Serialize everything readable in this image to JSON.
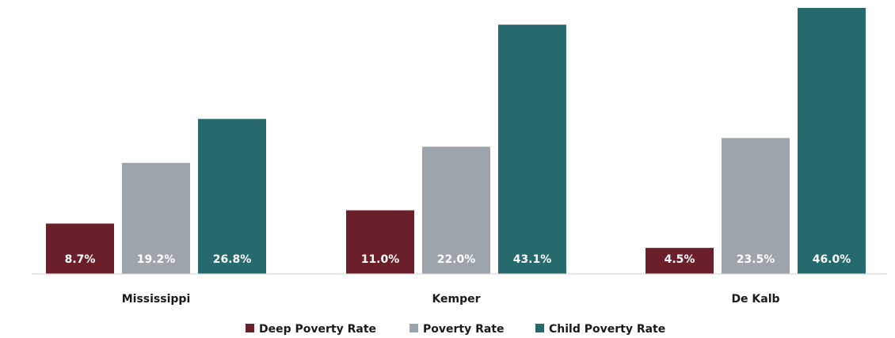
{
  "chart_data": {
    "type": "bar",
    "categories": [
      "Mississippi",
      "Kemper",
      "De Kalb"
    ],
    "series": [
      {
        "name": "Deep Poverty Rate",
        "color": "#6b1f2b",
        "values": [
          8.7,
          11.0,
          4.5
        ],
        "labels": [
          "8.7%",
          "11.0%",
          "4.5%"
        ]
      },
      {
        "name": "Poverty Rate",
        "color": "#9da4ac",
        "values": [
          19.2,
          22.0,
          23.5
        ],
        "labels": [
          "19.2%",
          "22.0%",
          "23.5%"
        ]
      },
      {
        "name": "Child Poverty Rate",
        "color": "#276a6e",
        "values": [
          26.8,
          43.1,
          46.0
        ],
        "labels": [
          "26.8%",
          "43.1%",
          "46.0%"
        ]
      }
    ],
    "ylim": [
      0,
      46.0
    ],
    "grid": false,
    "legend_position": "bottom"
  }
}
